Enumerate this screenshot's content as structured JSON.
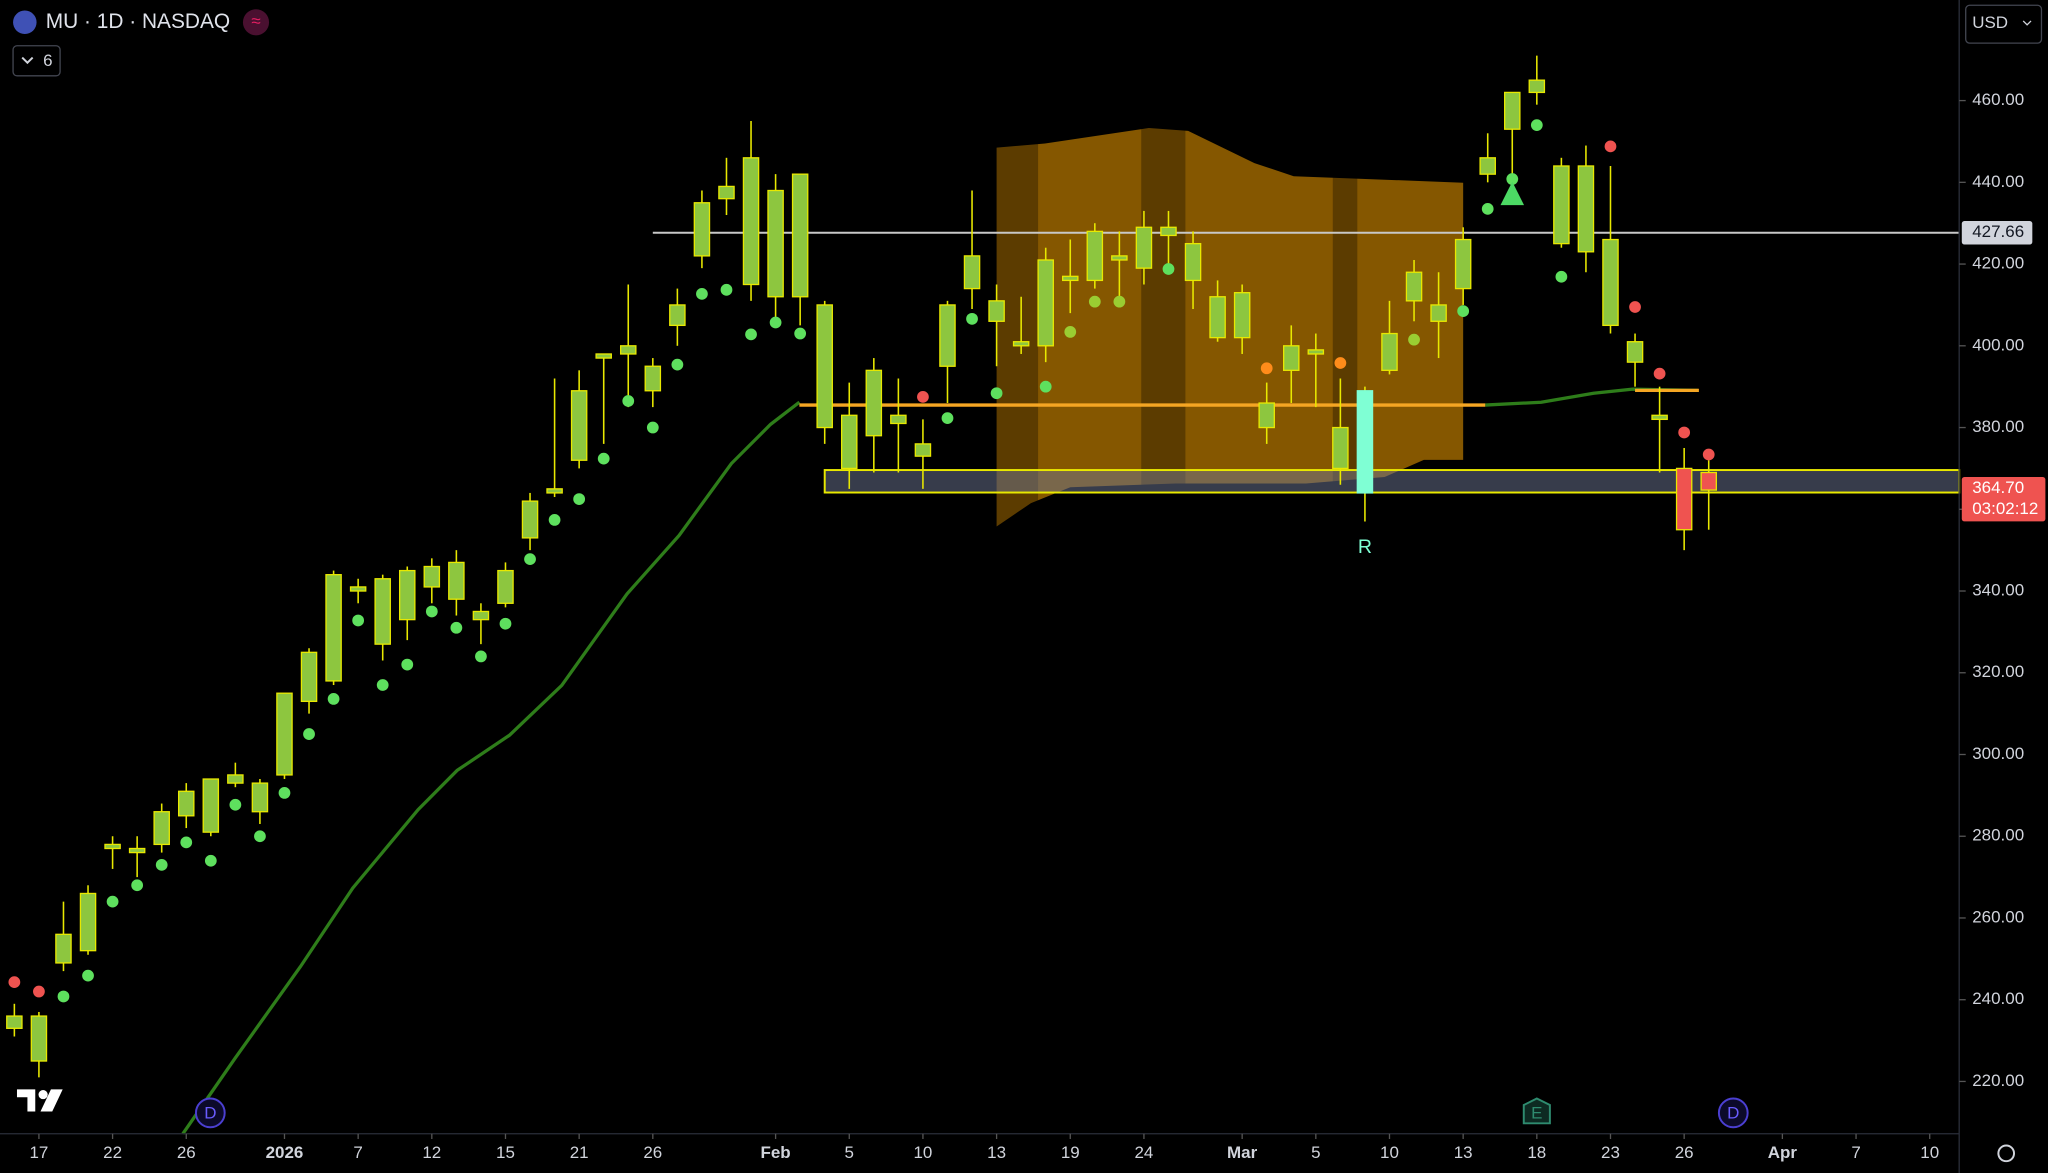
{
  "chart_data": {
    "type": "candlestick",
    "title": "MU · 1D · NASDAQ",
    "indicator_count": "6",
    "currency": "USD",
    "xlim": [
      -0.585,
      79.2
    ],
    "ylim": [
      207.2,
      484.6
    ],
    "xticks": [
      {
        "value": 1,
        "label": "17"
      },
      {
        "value": 4,
        "label": "22"
      },
      {
        "value": 7,
        "label": "26"
      },
      {
        "value": 11,
        "label": "2026"
      },
      {
        "value": 14,
        "label": "7"
      },
      {
        "value": 17,
        "label": "12"
      },
      {
        "value": 20,
        "label": "15"
      },
      {
        "value": 23,
        "label": "21"
      },
      {
        "value": 26,
        "label": "26"
      },
      {
        "value": 31,
        "label": "Feb"
      },
      {
        "value": 34,
        "label": "5"
      },
      {
        "value": 37,
        "label": "10"
      },
      {
        "value": 40,
        "label": "13"
      },
      {
        "value": 43,
        "label": "19"
      },
      {
        "value": 46,
        "label": "24"
      },
      {
        "value": 50,
        "label": "Mar"
      },
      {
        "value": 53,
        "label": "5"
      },
      {
        "value": 56,
        "label": "10"
      },
      {
        "value": 59,
        "label": "13"
      },
      {
        "value": 62,
        "label": "18"
      },
      {
        "value": 65,
        "label": "23"
      },
      {
        "value": 68,
        "label": "26"
      },
      {
        "value": 72,
        "label": "Apr"
      },
      {
        "value": 75,
        "label": "7"
      },
      {
        "value": 78,
        "label": "10"
      }
    ],
    "yticks": [
      {
        "value": 220,
        "label": "220.00"
      },
      {
        "value": 240,
        "label": "240.00"
      },
      {
        "value": 260,
        "label": "260.00"
      },
      {
        "value": 280,
        "label": "280.00"
      },
      {
        "value": 300,
        "label": "300.00"
      },
      {
        "value": 320,
        "label": "320.00"
      },
      {
        "value": 340,
        "label": "340.00"
      },
      {
        "value": 360,
        "label": "360.00"
      },
      {
        "value": 380,
        "label": "380.00"
      },
      {
        "value": 400,
        "label": "400.00"
      },
      {
        "value": 420,
        "label": "420.00"
      },
      {
        "value": 440,
        "label": "440.00"
      },
      {
        "value": 460,
        "label": "460.00"
      }
    ],
    "x": [
      0,
      1,
      2,
      3,
      4,
      5,
      6,
      7,
      8,
      9,
      10,
      11,
      12,
      13,
      14,
      15,
      16,
      17,
      18,
      19,
      20,
      21,
      22,
      23,
      24,
      25,
      26,
      27,
      28,
      29,
      30,
      31,
      32,
      33,
      34,
      35,
      36,
      37,
      38,
      39,
      40,
      41,
      42,
      43,
      44,
      45,
      46,
      47,
      48,
      49,
      50,
      51,
      52,
      53,
      54,
      55,
      56,
      57,
      58,
      59,
      60,
      61,
      62,
      63,
      64,
      65,
      66,
      67,
      68,
      69
    ],
    "open": [
      233,
      225,
      249,
      252,
      277,
      276,
      278,
      285,
      281,
      293,
      286,
      295,
      313,
      318,
      340,
      327,
      333,
      341,
      338,
      333,
      337,
      353,
      364,
      372,
      397,
      398,
      389,
      405,
      422,
      436,
      415,
      412,
      412,
      380,
      370,
      378,
      381,
      373,
      395,
      414,
      406,
      400,
      400,
      416,
      416,
      421,
      419,
      427,
      416,
      402,
      402,
      380,
      394,
      398,
      370,
      364,
      394,
      411,
      406,
      414,
      442,
      453,
      462,
      425,
      423,
      405,
      396,
      382,
      370,
      369
    ],
    "high": [
      239,
      237,
      264,
      268,
      280,
      280,
      288,
      293,
      294,
      298,
      294,
      315,
      326,
      345,
      343,
      344,
      346,
      348,
      350,
      337,
      347,
      364,
      392,
      394,
      398,
      415,
      397,
      414,
      438,
      446,
      455,
      442,
      442,
      411,
      391,
      397,
      392,
      382,
      411,
      438,
      415,
      412,
      424,
      426,
      430,
      428,
      433,
      433,
      428,
      416,
      415,
      391,
      405,
      403,
      392,
      390,
      411,
      421,
      418,
      429,
      452,
      462,
      471,
      446,
      449,
      444,
      403,
      390,
      375,
      372
    ],
    "low": [
      231,
      221,
      247,
      251,
      272,
      270,
      276,
      282,
      280,
      292,
      283,
      294,
      310,
      317,
      337,
      323,
      328,
      337,
      334,
      327,
      336,
      350,
      363,
      370,
      376,
      385,
      385,
      400,
      419,
      432,
      411,
      407,
      405,
      376,
      365,
      369,
      369,
      365,
      386,
      409,
      395,
      398,
      396,
      408,
      414,
      412,
      415,
      420,
      409,
      401,
      398,
      376,
      386,
      385,
      366,
      357,
      393,
      406,
      397,
      410,
      440,
      442,
      459,
      424,
      418,
      403,
      390,
      369,
      350,
      355
    ],
    "close": [
      236,
      236,
      256,
      266,
      278,
      277,
      286,
      291,
      294,
      295,
      293,
      315,
      325,
      344,
      341,
      343,
      345,
      346,
      347,
      335,
      345,
      362,
      365,
      389,
      398,
      400,
      395,
      410,
      435,
      439,
      446,
      438,
      442,
      410,
      383,
      394,
      383,
      376,
      410,
      422,
      411,
      401,
      421,
      417,
      428,
      422,
      429,
      429,
      425,
      412,
      413,
      386,
      400,
      399,
      380,
      389,
      403,
      418,
      410,
      426,
      446,
      462,
      465,
      444,
      444,
      426,
      401,
      383,
      355,
      364.7
    ],
    "up_color": "#8dc63f",
    "down_color": "#ef5350",
    "wick_color": "#e8e800",
    "highlight": {
      "x": 55,
      "color": "#7fffd4",
      "label": "R"
    },
    "dots": {
      "x": [
        0,
        1,
        2,
        3,
        4,
        5,
        6,
        7,
        8,
        9,
        10,
        11,
        12,
        13,
        14,
        15,
        16,
        17,
        18,
        19,
        20,
        21,
        22,
        23,
        24,
        25,
        26,
        27,
        28,
        29,
        30,
        31,
        32,
        37,
        38,
        39,
        40,
        42,
        43,
        44,
        45,
        47,
        51,
        54,
        57,
        59,
        60,
        61,
        62,
        63,
        65,
        66,
        67,
        68,
        69
      ],
      "values": [
        244.3,
        242,
        240.8,
        245.9,
        264,
        268,
        273,
        278.5,
        274,
        287.7,
        280,
        290.6,
        305,
        313.6,
        332.8,
        317,
        322,
        335,
        331,
        324,
        332,
        347.8,
        357.4,
        362.5,
        372.4,
        386.5,
        380,
        395.4,
        412.7,
        413.7,
        402.8,
        405.7,
        403,
        387.5,
        382.3,
        406.6,
        388.4,
        390,
        403.4,
        410.8,
        410.8,
        418.8,
        394.5,
        395.8,
        401.5,
        408.5,
        433.5,
        440.8,
        454,
        416.9,
        448.8,
        409.5,
        393.2,
        378.8,
        373.4
      ],
      "colors": [
        "#ef5350",
        "#ef5350",
        "#5ee05e",
        "#5ee05e",
        "#5ee05e",
        "#5ee05e",
        "#5ee05e",
        "#5ee05e",
        "#5ee05e",
        "#5ee05e",
        "#5ee05e",
        "#5ee05e",
        "#5ee05e",
        "#5ee05e",
        "#5ee05e",
        "#5ee05e",
        "#5ee05e",
        "#5ee05e",
        "#5ee05e",
        "#5ee05e",
        "#5ee05e",
        "#5ee05e",
        "#5ee05e",
        "#5ee05e",
        "#5ee05e",
        "#5ee05e",
        "#5ee05e",
        "#5ee05e",
        "#5ee05e",
        "#5ee05e",
        "#5ee05e",
        "#5ee05e",
        "#5ee05e",
        "#ef5350",
        "#5ee05e",
        "#5ee05e",
        "#5ee05e",
        "#5ee05e",
        "#9acd32",
        "#9acd32",
        "#9acd32",
        "#5ee05e",
        "#ff8c1a",
        "#ff8c1a",
        "#9acd32",
        "#5ee05e",
        "#5ee05e",
        "#5ee05e",
        "#5ee05e",
        "#5ee05e",
        "#ef5350",
        "#ef5350",
        "#ef5350",
        "#ef5350",
        "#ef5350"
      ]
    },
    "signal": {
      "x": 61,
      "value": 437.3,
      "color": "#4cd964"
    },
    "ema": {
      "color": "#2e7d1a",
      "x": [
        6.86,
        8.99,
        11.65,
        13.78,
        16.44,
        18.03,
        20.16,
        22.29,
        24.95,
        27.07,
        29.2,
        30.8,
        31.97,
        null,
        59.9,
        62.18,
        64.31,
        65.9,
        68.56
      ],
      "values": [
        207.2,
        225.7,
        248.1,
        267.3,
        286.5,
        296.1,
        304.7,
        316.9,
        339.3,
        353.6,
        371.2,
        380.8,
        386.2,
        null,
        385.5,
        386.2,
        388.4,
        389.4,
        389.1
      ]
    },
    "levels": [
      {
        "value": 385.5,
        "x": [
          31.97,
          59.9
        ],
        "color": "#f5a623"
      },
      {
        "value": 389.1,
        "x": [
          66,
          68.6
        ],
        "color": "#f5a623"
      }
    ],
    "price_line": {
      "value": 427.66,
      "label": "427.66",
      "x_start": 26,
      "color": "#c8c8c8"
    },
    "zone": {
      "low": 364.1,
      "high": 369.6,
      "x_start": 33,
      "color": "#e8e800"
    },
    "profile": {
      "color": "#b87800",
      "x": [
        40,
        41.97,
        46.2,
        47.8,
        50.5,
        52.1,
        59,
        59,
        57.4,
        55.8,
        52.6,
        47.3,
        43,
        41.4,
        40
      ],
      "values": [
        448.5,
        449.5,
        453.3,
        452.6,
        444.7,
        441.5,
        439.9,
        372.1,
        372.1,
        367.9,
        366.3,
        366.3,
        365.4,
        361.5,
        355.8
      ]
    },
    "bands": [
      [
        40,
        42
      ],
      [
        46.2,
        48
      ],
      [
        54,
        55
      ]
    ],
    "current": {
      "value": 364.7,
      "label": "364.70",
      "countdown": "03:02:12",
      "color": "#ef5350"
    },
    "events": [
      {
        "x": 7.98,
        "label": "D"
      },
      {
        "x": 62,
        "label": "E"
      },
      {
        "x": 70,
        "label": "D"
      }
    ]
  }
}
